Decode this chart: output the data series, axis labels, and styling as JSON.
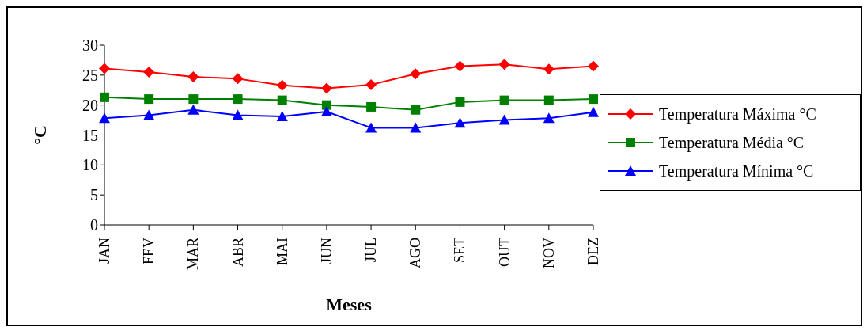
{
  "chart_data": {
    "type": "line",
    "xlabel": "Meses",
    "ylabel": "°C",
    "categories": [
      "JAN",
      "FEV",
      "MAR",
      "ABR",
      "MAI",
      "JUN",
      "JUL",
      "AGO",
      "SET",
      "OUT",
      "NOV",
      "DEZ"
    ],
    "series": [
      {
        "name": "Temperatura Máxima °C",
        "color": "#ff0000",
        "marker": "diamond",
        "values": [
          26.1,
          25.5,
          24.7,
          24.4,
          23.3,
          22.8,
          23.4,
          25.2,
          26.5,
          26.8,
          26.0,
          26.5
        ]
      },
      {
        "name": "Temperatura Média °C",
        "color": "#008000",
        "marker": "square",
        "values": [
          21.3,
          21.0,
          21.0,
          21.0,
          20.8,
          20.0,
          19.7,
          19.2,
          20.5,
          20.8,
          20.8,
          21.0
        ]
      },
      {
        "name": "Temperatura Mínima °C",
        "color": "#0000ff",
        "marker": "triangle",
        "values": [
          17.8,
          18.3,
          19.2,
          18.3,
          18.1,
          18.9,
          16.2,
          16.2,
          17.0,
          17.5,
          17.8,
          18.8
        ]
      }
    ],
    "ylim": [
      0,
      30
    ],
    "yticks": [
      0,
      5,
      10,
      15,
      20,
      25,
      30
    ],
    "grid": false,
    "legend": "right",
    "line_style": "solid"
  }
}
